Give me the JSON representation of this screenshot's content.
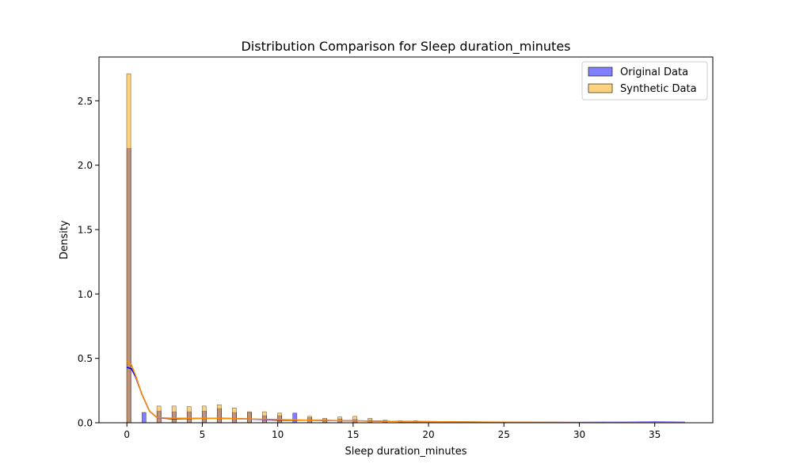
{
  "chart_data": {
    "type": "bar",
    "title": "Distribution Comparison for Sleep duration_minutes",
    "xlabel": "Sleep duration_minutes",
    "ylabel": "Density",
    "xlim": [
      -1.85,
      38.85
    ],
    "ylim": [
      0,
      2.84
    ],
    "xticks": [
      0,
      5,
      10,
      15,
      20,
      25,
      30,
      35
    ],
    "yticks": [
      0.0,
      0.5,
      1.0,
      1.5,
      2.0,
      2.5
    ],
    "xtick_labels": [
      "0",
      "5",
      "10",
      "15",
      "20",
      "25",
      "30",
      "35"
    ],
    "ytick_labels": [
      "0.0",
      "0.5",
      "1.0",
      "1.5",
      "2.0",
      "2.5"
    ],
    "grid": false,
    "legend_position": "top-right",
    "bin_width": 0.27,
    "series": [
      {
        "name": "Original Data",
        "color": "#0000ff",
        "kde_color": "#0000ff",
        "bars": [
          {
            "x": 0,
            "density": 2.13
          },
          {
            "x": 1,
            "density": 0.08
          },
          {
            "x": 2,
            "density": 0.09
          },
          {
            "x": 3,
            "density": 0.085
          },
          {
            "x": 4,
            "density": 0.085
          },
          {
            "x": 5,
            "density": 0.09
          },
          {
            "x": 6,
            "density": 0.11
          },
          {
            "x": 7,
            "density": 0.08
          },
          {
            "x": 8,
            "density": 0.08
          },
          {
            "x": 9,
            "density": 0.055
          },
          {
            "x": 10,
            "density": 0.055
          },
          {
            "x": 11,
            "density": 0.075
          },
          {
            "x": 12,
            "density": 0.04
          },
          {
            "x": 13,
            "density": 0.025
          },
          {
            "x": 14,
            "density": 0.03
          },
          {
            "x": 15,
            "density": 0.025
          },
          {
            "x": 16,
            "density": 0.02
          },
          {
            "x": 17,
            "density": 0.015
          },
          {
            "x": 18,
            "density": 0.015
          },
          {
            "x": 19,
            "density": 0.015
          }
        ],
        "kde": {
          "x": [
            0,
            0.3,
            0.6,
            1,
            1.5,
            2,
            3,
            5,
            6,
            8,
            10,
            12,
            15,
            18,
            20,
            25,
            30,
            33,
            35,
            37
          ],
          "y": [
            0.43,
            0.42,
            0.35,
            0.22,
            0.09,
            0.04,
            0.03,
            0.035,
            0.035,
            0.03,
            0.02,
            0.02,
            0.015,
            0.01,
            0.008,
            0.003,
            0.002,
            0.003,
            0.004,
            0.003
          ]
        }
      },
      {
        "name": "Synthetic Data",
        "color": "#ffa500",
        "kde_color": "#ff8c00",
        "bars": [
          {
            "x": 0,
            "density": 2.71
          },
          {
            "x": 2,
            "density": 0.13
          },
          {
            "x": 3,
            "density": 0.13
          },
          {
            "x": 4,
            "density": 0.125
          },
          {
            "x": 5,
            "density": 0.13
          },
          {
            "x": 6,
            "density": 0.14
          },
          {
            "x": 7,
            "density": 0.115
          },
          {
            "x": 8,
            "density": 0.085
          },
          {
            "x": 9,
            "density": 0.085
          },
          {
            "x": 10,
            "density": 0.075
          },
          {
            "x": 12,
            "density": 0.05
          },
          {
            "x": 13,
            "density": 0.035
          },
          {
            "x": 14,
            "density": 0.045
          },
          {
            "x": 15,
            "density": 0.05
          },
          {
            "x": 16,
            "density": 0.035
          },
          {
            "x": 17,
            "density": 0.02
          }
        ],
        "kde": {
          "x": [
            0,
            0.3,
            0.6,
            1,
            1.5,
            2,
            3,
            5,
            6,
            8,
            10,
            12,
            15,
            18,
            20,
            25,
            30,
            33,
            35,
            37
          ],
          "y": [
            0.48,
            0.45,
            0.36,
            0.22,
            0.09,
            0.04,
            0.035,
            0.035,
            0.035,
            0.03,
            0.025,
            0.02,
            0.015,
            0.01,
            0.008,
            0.004,
            0.002,
            0.001,
            0.001,
            0.001
          ]
        }
      }
    ]
  }
}
